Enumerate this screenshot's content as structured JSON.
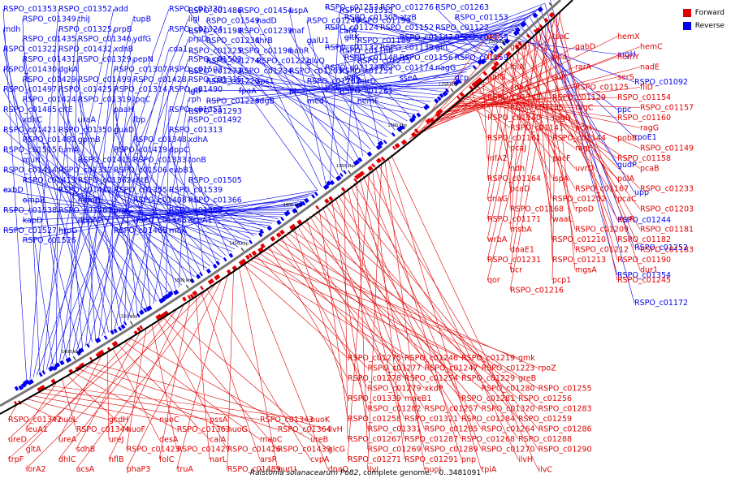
{
  "legend": {
    "forward_label": "Forward",
    "reverse_label": "Reverse",
    "forward_color": "#e00000",
    "reverse_color": "#0000ee"
  },
  "caption": {
    "organism": "Ralstonia solanacearum Po82",
    "rest": ", complete genome. - 0..3481091"
  },
  "colors": {
    "forward": "#e00000",
    "reverse": "#0000ee",
    "backbone": "#777777",
    "tick": "#000000"
  },
  "scale_ticks": [
    "1150 kbp",
    "1200 kbp",
    "1250 kbp",
    "1300 kbp",
    "1350 kbp",
    "1400 kbp",
    "1450 kbp",
    "1500 kbp",
    "1550 kbp",
    "1600 kbp"
  ],
  "reverse_labels": [
    "RSPO_c01353",
    "RSPO_c01352",
    "add",
    "RSPO_c01330",
    "RSPO_c01349",
    "thiJ",
    "tupB",
    "ligI",
    "mdh",
    "RSPO_c01325",
    "prpB",
    "RSPO_c01324",
    "RSPO_c01435",
    "RSPO_c01346",
    "ydfG",
    "prpD",
    "RSPO_c01322",
    "RSPO_c01432",
    "xdhB",
    "cda1",
    "RSPO_c01431",
    "RSPO_c01329",
    "pepN",
    "RSPO_c01503",
    "RSPO_c01430",
    "dgkA",
    "RSPO_c01307",
    "RSPO_c01502",
    "RSPO_c01429",
    "RSPO_c01499",
    "RSPO_c01428",
    "RSPO_c01315",
    "RSPO_c01497",
    "RSPO_c01425",
    "RSPO_c01314",
    "RSPO_c01490",
    "RSPO_c01424",
    "RSPO_c01319",
    "lpqC",
    "rph",
    "RSPO_c01485",
    "citE",
    "paaH",
    "RSPO_c01351",
    "xdhC",
    "uraA",
    "fbp",
    "RSPO_c01492",
    "RSPO_c01421",
    "RSPO_c01350",
    "guaD",
    "RSPO_c01313",
    "RSPO_c01482",
    "gpmB",
    "RSPO_c01348",
    "xdhA",
    "RSPO_c01515",
    "fumA",
    "RSPO_c01419",
    "dppC",
    "murI",
    "RSPO_c01415",
    "RSPO_c01333",
    "tonB",
    "RSPO_c01414",
    "RSPO_c01332",
    "RSPO_c01506",
    "exbB1",
    "RSPO_c01413",
    "RSPO_c01362",
    "rhtB",
    "RSPO_c01505",
    "exbD",
    "RSPO_c01412",
    "RSPO_c01355",
    "RSPO_c01539",
    "ompR",
    "hemP",
    "RSPO_c01408",
    "RSPO_c01366",
    "RSPO_c01538",
    "RSPO_c01467",
    "prpC",
    "RSPO_c01388",
    "kapD",
    "dppA2",
    "RSPO_c01466",
    "acnA1",
    "RSPO_c01527",
    "hrpG",
    "RSPO_c01465",
    "rnhA",
    "RSPO_c01526",
    "RSPO_c01486",
    "RSPO_c01454",
    "uspA",
    "RSPO_c01513",
    "RSPO_c01549",
    "nadD",
    "RSPO_c01240",
    "RSPO_c01199",
    "RSPO_c01198",
    "RSPO_c01239",
    "maf",
    "cafA",
    "RSPO_c01236",
    "thrB",
    "galU1",
    "RSPO_c01189",
    "RSPO_c01225",
    "RSPO_c01196",
    "nahR",
    "RSPO_c01186",
    "RSPO_c01274",
    "RSPO_c01222",
    "gluQ",
    "RSPO_c01235",
    "RSPO_c01273",
    "RSPO_c01234",
    "RSPO_c01205",
    "RSPO_c01251",
    "RSPO_c01220",
    "sps1",
    "RSPO_c01262",
    "purD",
    "lgtF",
    "fpaA",
    "ptc1",
    "RSPO_c01261",
    "RSPO_c01226",
    "rdgB",
    "med",
    "hemF",
    "RSPO_c01293",
    "RSPO_c01253",
    "RSPO_c01276",
    "RSPO_c01263",
    "RSPO_c01305",
    "atzB",
    "RSPO_c01153",
    "RSPO_c01124",
    "RSPO_c01152",
    "RSPO_c01122",
    "gltK",
    "RSPO_c01147",
    "RSPO_c01155",
    "RSPO_c01132",
    "RSPO_c01139",
    "gltL",
    "RSPO_c01148",
    "RSPO_c01156",
    "RSPO_c01159",
    "RSPO_c01173",
    "RSPO_c01174",
    "nagG",
    "valS",
    "sseA",
    "gcp",
    "trxB",
    "argH",
    "RSPO_c01092",
    "ppc",
    "rpoE1",
    "gudP",
    "upp",
    "RSPO_c01244",
    "RSPO_c01252",
    "RSPO_c01354",
    "RSPO_c01172"
  ],
  "forward_labels": [
    "adi",
    "tsaC",
    "hemX",
    "glnB",
    "gabD",
    "hemC",
    "ftsK",
    "ppa",
    "hemY",
    "lolA",
    "rarA",
    "nadE",
    "pulG",
    "sufI",
    "serS",
    "copA",
    "RSPO_c01125",
    "fliD",
    "RSPO_c01143",
    "RSPO_c01129",
    "RSPO_c01154",
    "RSPO_c01135",
    "ragC",
    "RSPO_c01157",
    "RSPO_c01140",
    "ragD",
    "RSPO_c01160",
    "RSPO_c01141",
    "pcaI",
    "ragG",
    "RSPO_c01161",
    "RSPO_c01144",
    "pobB",
    "pcaJ",
    "ragF",
    "RSPO_c01149",
    "infA2",
    "pacF",
    "RSPO_c01158",
    "ndh",
    "uvrD",
    "pcaB",
    "RSPO_c01164",
    "ispA",
    "polA",
    "pcaD",
    "RSPO_c01167",
    "RSPO_c01233",
    "dnaG",
    "RSPO_c01202",
    "pcaC",
    "RSPO_c01168",
    "rpoD",
    "RSPO_c01203",
    "RSPO_c01171",
    "waaL",
    "acrR",
    "msbA",
    "RSPO_c01209",
    "RSPO_c01181",
    "wrbA",
    "RSPO_c01210",
    "RSPO_c01182",
    "dnaE1",
    "RSPO_c01212",
    "RSPO_c01183",
    "RSPO_c01231",
    "RSPO_c01213",
    "RSPO_c01190",
    "bcr",
    "mgsA",
    "dur1",
    "qor",
    "pcp1",
    "RSPO_c01245",
    "RSPO_c01216",
    "RSPO_c01275",
    "RSPO_c01246",
    "RSPO_c01219",
    "gmk",
    "RSPO_c01277",
    "RSPO_c01247",
    "RSPO_c01223",
    "rpoZ",
    "RSPO_c01278",
    "RSPO_c01254",
    "RSPO_c01229",
    "greB",
    "RSPO_c01279",
    "xkdP",
    "RSPO_c01280",
    "RSPO_c01255",
    "RSPO_c01339",
    "maeB1",
    "RSPO_c01281",
    "RSPO_c01256",
    "RSPO_c01282",
    "RSPO_c01257",
    "RSPO_c01320",
    "RSPO_c01283",
    "RSPO_c01258",
    "RSPO_c01321",
    "RSPO_c01284",
    "RSPO_c01259",
    "RSPO_c01331",
    "RSPO_c01285",
    "RSPO_c01264",
    "RSPO_c01286",
    "RSPO_c01267",
    "RSPO_c01287",
    "RSPO_c01268",
    "RSPO_c01288",
    "RSPO_c01269",
    "RSPO_c01289",
    "RSPO_c01270",
    "RSPO_c01290",
    "RSPO_c01271",
    "RSPO_c01291",
    "pnp",
    "ilvH",
    "ilvI",
    "nuoJ",
    "tpiA",
    "ilvC",
    "nuoN",
    "secG",
    "nuoB",
    "RSPO_c01341",
    "nuoM",
    "nuoE",
    "RSPO_c01342",
    "nuoL",
    "gcdH",
    "nuoC",
    "pssA",
    "RSPO_c01343",
    "nuoK",
    "leuA1",
    "RSPO_c01344",
    "nuoF",
    "RSPO_c01363",
    "nuoG",
    "RSPO_c01364",
    "ilvH",
    "ureD",
    "ureA",
    "ureJ",
    "desA",
    "caiA",
    "maoC",
    "ureB",
    "gltA",
    "sdhB",
    "RSPO_c01423",
    "RSPO_c01427",
    "RSPO_c01426",
    "RSPO_c01439",
    "glcG",
    "trpF",
    "dhlC",
    "hflB",
    "folC",
    "narL",
    "arsR",
    "cvpA",
    "iorA2",
    "acsA",
    "phaP3",
    "truA",
    "RSPO_c01489",
    "purU",
    "dnaQ",
    "xerD",
    "mel",
    "RSPO_c01551",
    "folP",
    "pstS1"
  ]
}
